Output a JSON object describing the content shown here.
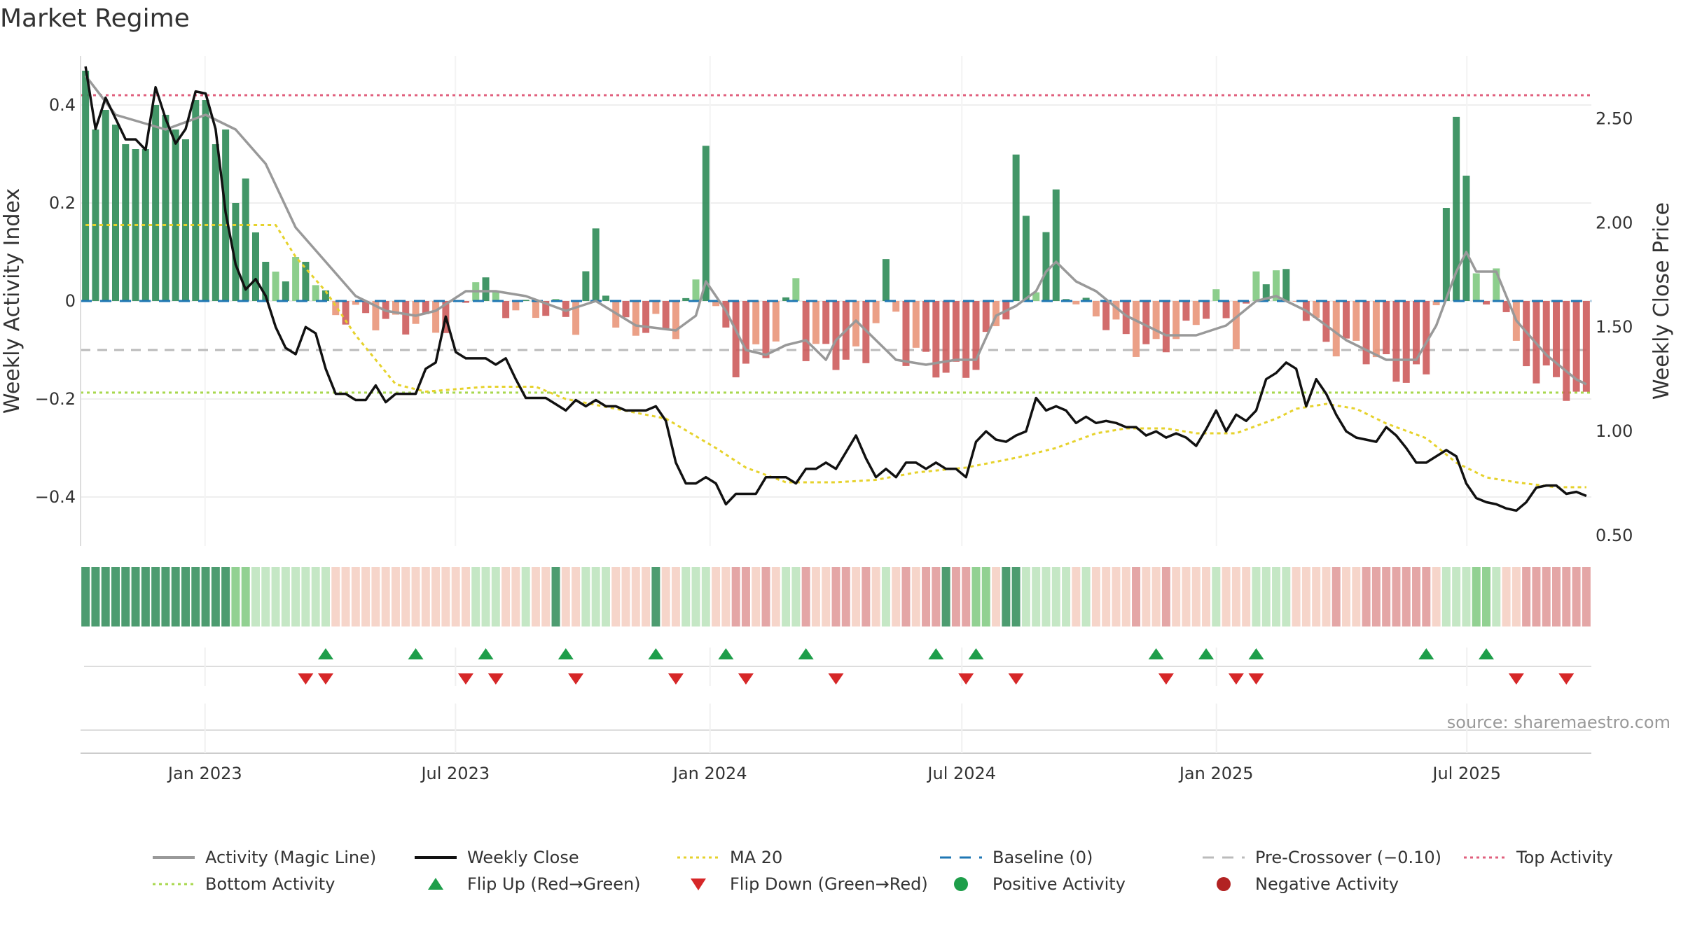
{
  "title": "Market Regime",
  "source": "source: sharemaestro.com",
  "colors": {
    "pos_strong": "#2e8b57",
    "pos_light": "#7fc97f",
    "neg_strong": "#cd5c5c",
    "neg_light": "#e9967a",
    "magic": "#999999",
    "close": "#111111",
    "ma": "#e6d22c",
    "baseline": "#1f77b4",
    "pre": "#bbbbbb",
    "top": "#e0607e",
    "bottom": "#a8d84e",
    "flip_up": "#1e9e4a",
    "flip_down": "#d62728",
    "pos_dot": "#1e9e4a",
    "neg_dot": "#b22222"
  },
  "chart_data": {
    "type": "bar",
    "x_axis": {
      "start": "2022-10-03",
      "end": "2025-09-29",
      "ticks": [
        "Jan 2023",
        "Jul 2023",
        "Jan 2024",
        "Jul 2024",
        "Jan 2025",
        "Jul 2025"
      ],
      "tick_dates": [
        "2023-01-01",
        "2023-07-01",
        "2024-01-01",
        "2024-07-01",
        "2025-01-01",
        "2025-07-01"
      ]
    },
    "y_left": {
      "label": "Weekly Activity Index",
      "ylim": [
        -0.5,
        0.5
      ],
      "ticks": [
        0.4,
        0.2,
        0,
        -0.2,
        -0.4
      ],
      "tick_labels": [
        "0.4",
        "0.2",
        "0",
        "−0.2",
        "−0.4"
      ]
    },
    "y_right": {
      "label": "Weekly Close Price",
      "ylim": [
        0.45,
        2.8
      ],
      "ticks": [
        2.5,
        2.0,
        1.5,
        1.0,
        0.5
      ],
      "tick_labels": [
        "2.50",
        "2.00",
        "1.50",
        "1.00",
        "0.50"
      ]
    },
    "activity": {
      "start_values": [
        0.47,
        0.35,
        0.39,
        0.36,
        0.32,
        0.31,
        0.31,
        0.4,
        0.38,
        0.35,
        0.33,
        0.41,
        0.41,
        0.32,
        0.35,
        0.2,
        0.25,
        0.14,
        0.08,
        0.06,
        0.04,
        0.09,
        0.08
      ],
      "anchors": [
        [
          22,
          0.08
        ],
        [
          24,
          0.01
        ],
        [
          26,
          -0.02
        ],
        [
          28,
          -0.04
        ],
        [
          30,
          -0.06
        ],
        [
          33,
          -0.03
        ],
        [
          36,
          -0.05
        ],
        [
          38,
          -0.02
        ],
        [
          39,
          0.05
        ],
        [
          41,
          0.01
        ],
        [
          45,
          -0.02
        ],
        [
          49,
          -0.05
        ],
        [
          51,
          0.15
        ],
        [
          53,
          -0.05
        ],
        [
          56,
          -0.07
        ],
        [
          59,
          -0.05
        ],
        [
          61,
          0.05
        ],
        [
          62,
          0.35
        ],
        [
          63,
          -0.02
        ],
        [
          65,
          -0.15
        ],
        [
          68,
          -0.1
        ],
        [
          71,
          0.05
        ],
        [
          72,
          -0.1
        ],
        [
          75,
          -0.13
        ],
        [
          78,
          -0.1
        ],
        [
          80,
          0.07
        ],
        [
          82,
          -0.12
        ],
        [
          86,
          -0.14
        ],
        [
          89,
          -0.12
        ],
        [
          92,
          -0.03
        ],
        [
          93,
          0.27
        ],
        [
          95,
          0.05
        ],
        [
          96,
          0.15
        ],
        [
          97,
          0.22
        ],
        [
          98,
          0.03
        ],
        [
          100,
          -0.03
        ],
        [
          103,
          -0.06
        ],
        [
          107,
          -0.09
        ],
        [
          110,
          -0.08
        ],
        [
          113,
          0.01
        ],
        [
          115,
          -0.06
        ],
        [
          117,
          0.04
        ],
        [
          119,
          0.05
        ],
        [
          121,
          0.01
        ],
        [
          124,
          -0.07
        ],
        [
          128,
          -0.12
        ],
        [
          131,
          -0.14
        ],
        [
          134,
          -0.14
        ],
        [
          136,
          0.16
        ],
        [
          137,
          0.35
        ],
        [
          138,
          0.27
        ],
        [
          139,
          0.05
        ],
        [
          140,
          -0.02
        ],
        [
          141,
          0.1
        ],
        [
          142,
          0.0
        ],
        [
          143,
          -0.1
        ],
        [
          145,
          -0.16
        ],
        [
          148,
          -0.18
        ],
        [
          150,
          -0.19
        ]
      ],
      "magic_line": [
        [
          0,
          0.46
        ],
        [
          3,
          0.38
        ],
        [
          8,
          0.35
        ],
        [
          12,
          0.38
        ],
        [
          15,
          0.35
        ],
        [
          18,
          0.28
        ],
        [
          21,
          0.15
        ],
        [
          24,
          0.08
        ],
        [
          27,
          0.01
        ],
        [
          30,
          -0.02
        ],
        [
          33,
          -0.03
        ],
        [
          35,
          -0.02
        ],
        [
          38,
          0.02
        ],
        [
          41,
          0.02
        ],
        [
          44,
          0.01
        ],
        [
          48,
          -0.02
        ],
        [
          51,
          0.0
        ],
        [
          55,
          -0.05
        ],
        [
          59,
          -0.06
        ],
        [
          61,
          -0.03
        ],
        [
          62,
          0.04
        ],
        [
          64,
          -0.02
        ],
        [
          66,
          -0.1
        ],
        [
          68,
          -0.11
        ],
        [
          70,
          -0.09
        ],
        [
          72,
          -0.08
        ],
        [
          74,
          -0.12
        ],
        [
          75,
          -0.08
        ],
        [
          77,
          -0.04
        ],
        [
          79,
          -0.08
        ],
        [
          81,
          -0.12
        ],
        [
          84,
          -0.13
        ],
        [
          87,
          -0.12
        ],
        [
          89,
          -0.12
        ],
        [
          91,
          -0.03
        ],
        [
          93,
          -0.01
        ],
        [
          95,
          0.02
        ],
        [
          96,
          0.06
        ],
        [
          97,
          0.08
        ],
        [
          99,
          0.04
        ],
        [
          101,
          0.02
        ],
        [
          104,
          -0.03
        ],
        [
          108,
          -0.07
        ],
        [
          111,
          -0.07
        ],
        [
          114,
          -0.05
        ],
        [
          117,
          0.0
        ],
        [
          119,
          0.01
        ],
        [
          122,
          -0.02
        ],
        [
          126,
          -0.08
        ],
        [
          130,
          -0.12
        ],
        [
          133,
          -0.12
        ],
        [
          135,
          -0.05
        ],
        [
          137,
          0.06
        ],
        [
          138,
          0.1
        ],
        [
          139,
          0.06
        ],
        [
          141,
          0.06
        ],
        [
          143,
          -0.04
        ],
        [
          146,
          -0.11
        ],
        [
          149,
          -0.16
        ],
        [
          150,
          -0.17
        ]
      ],
      "ma20": [
        [
          0,
          0.155
        ],
        [
          19,
          0.155
        ],
        [
          21,
          0.09
        ],
        [
          24,
          0.02
        ],
        [
          27,
          -0.07
        ],
        [
          31,
          -0.17
        ],
        [
          34,
          -0.185
        ],
        [
          40,
          -0.175
        ],
        [
          45,
          -0.175
        ],
        [
          48,
          -0.2
        ],
        [
          53,
          -0.22
        ],
        [
          58,
          -0.24
        ],
        [
          63,
          -0.3
        ],
        [
          66,
          -0.34
        ],
        [
          70,
          -0.37
        ],
        [
          75,
          -0.37
        ],
        [
          79,
          -0.365
        ],
        [
          83,
          -0.35
        ],
        [
          88,
          -0.34
        ],
        [
          93,
          -0.32
        ],
        [
          97,
          -0.3
        ],
        [
          101,
          -0.27
        ],
        [
          104,
          -0.26
        ],
        [
          108,
          -0.26
        ],
        [
          111,
          -0.27
        ],
        [
          115,
          -0.27
        ],
        [
          119,
          -0.24
        ],
        [
          121,
          -0.22
        ],
        [
          124,
          -0.21
        ],
        [
          127,
          -0.22
        ],
        [
          130,
          -0.25
        ],
        [
          134,
          -0.28
        ],
        [
          137,
          -0.33
        ],
        [
          140,
          -0.36
        ],
        [
          143,
          -0.37
        ],
        [
          147,
          -0.38
        ],
        [
          150,
          -0.38
        ]
      ],
      "top_level": 0.42,
      "bottom_level": -0.187,
      "pre_crossover": -0.1,
      "baseline": 0
    },
    "weekly_close": [
      [
        0,
        2.75
      ],
      [
        1,
        2.45
      ],
      [
        2,
        2.6
      ],
      [
        3,
        2.5
      ],
      [
        4,
        2.4
      ],
      [
        5,
        2.4
      ],
      [
        6,
        2.35
      ],
      [
        7,
        2.65
      ],
      [
        8,
        2.5
      ],
      [
        9,
        2.38
      ],
      [
        10,
        2.45
      ],
      [
        11,
        2.63
      ],
      [
        12,
        2.62
      ],
      [
        13,
        2.45
      ],
      [
        14,
        2.05
      ],
      [
        15,
        1.8
      ],
      [
        16,
        1.68
      ],
      [
        17,
        1.73
      ],
      [
        18,
        1.65
      ],
      [
        19,
        1.5
      ],
      [
        20,
        1.4
      ],
      [
        21,
        1.37
      ],
      [
        22,
        1.5
      ],
      [
        23,
        1.47
      ],
      [
        24,
        1.3
      ],
      [
        25,
        1.18
      ],
      [
        26,
        1.18
      ],
      [
        27,
        1.15
      ],
      [
        28,
        1.15
      ],
      [
        29,
        1.22
      ],
      [
        30,
        1.14
      ],
      [
        31,
        1.18
      ],
      [
        32,
        1.18
      ],
      [
        33,
        1.18
      ],
      [
        34,
        1.3
      ],
      [
        35,
        1.33
      ],
      [
        36,
        1.55
      ],
      [
        37,
        1.38
      ],
      [
        38,
        1.35
      ],
      [
        39,
        1.35
      ],
      [
        40,
        1.35
      ],
      [
        41,
        1.32
      ],
      [
        42,
        1.35
      ],
      [
        43,
        1.25
      ],
      [
        44,
        1.16
      ],
      [
        45,
        1.16
      ],
      [
        46,
        1.16
      ],
      [
        47,
        1.13
      ],
      [
        48,
        1.1
      ],
      [
        49,
        1.15
      ],
      [
        50,
        1.12
      ],
      [
        51,
        1.15
      ],
      [
        52,
        1.12
      ],
      [
        53,
        1.12
      ],
      [
        54,
        1.1
      ],
      [
        55,
        1.1
      ],
      [
        56,
        1.1
      ],
      [
        57,
        1.12
      ],
      [
        58,
        1.05
      ],
      [
        59,
        0.85
      ],
      [
        60,
        0.75
      ],
      [
        61,
        0.75
      ],
      [
        62,
        0.78
      ],
      [
        63,
        0.75
      ],
      [
        64,
        0.65
      ],
      [
        65,
        0.7
      ],
      [
        66,
        0.7
      ],
      [
        67,
        0.7
      ],
      [
        68,
        0.78
      ],
      [
        69,
        0.78
      ],
      [
        70,
        0.78
      ],
      [
        71,
        0.75
      ],
      [
        72,
        0.82
      ],
      [
        73,
        0.82
      ],
      [
        74,
        0.85
      ],
      [
        75,
        0.82
      ],
      [
        76,
        0.9
      ],
      [
        77,
        0.98
      ],
      [
        78,
        0.87
      ],
      [
        79,
        0.78
      ],
      [
        80,
        0.82
      ],
      [
        81,
        0.78
      ],
      [
        82,
        0.85
      ],
      [
        83,
        0.85
      ],
      [
        84,
        0.82
      ],
      [
        85,
        0.85
      ],
      [
        86,
        0.82
      ],
      [
        87,
        0.82
      ],
      [
        88,
        0.78
      ],
      [
        89,
        0.95
      ],
      [
        90,
        1.0
      ],
      [
        91,
        0.96
      ],
      [
        92,
        0.95
      ],
      [
        93,
        0.98
      ],
      [
        94,
        1.0
      ],
      [
        95,
        1.16
      ],
      [
        96,
        1.1
      ],
      [
        97,
        1.12
      ],
      [
        98,
        1.1
      ],
      [
        99,
        1.04
      ],
      [
        100,
        1.07
      ],
      [
        101,
        1.04
      ],
      [
        102,
        1.05
      ],
      [
        103,
        1.04
      ],
      [
        104,
        1.02
      ],
      [
        105,
        1.02
      ],
      [
        106,
        0.98
      ],
      [
        107,
        1.0
      ],
      [
        108,
        0.97
      ],
      [
        109,
        0.99
      ],
      [
        110,
        0.97
      ],
      [
        111,
        0.93
      ],
      [
        112,
        1.01
      ],
      [
        113,
        1.1
      ],
      [
        114,
        1.0
      ],
      [
        115,
        1.08
      ],
      [
        116,
        1.05
      ],
      [
        117,
        1.1
      ],
      [
        118,
        1.25
      ],
      [
        119,
        1.28
      ],
      [
        120,
        1.33
      ],
      [
        121,
        1.3
      ],
      [
        122,
        1.12
      ],
      [
        123,
        1.25
      ],
      [
        124,
        1.18
      ],
      [
        125,
        1.08
      ],
      [
        126,
        1.0
      ],
      [
        127,
        0.97
      ],
      [
        128,
        0.96
      ],
      [
        129,
        0.95
      ],
      [
        130,
        1.02
      ],
      [
        131,
        0.98
      ],
      [
        132,
        0.92
      ],
      [
        133,
        0.85
      ],
      [
        134,
        0.85
      ],
      [
        135,
        0.88
      ],
      [
        136,
        0.91
      ],
      [
        137,
        0.88
      ],
      [
        138,
        0.75
      ],
      [
        139,
        0.68
      ],
      [
        140,
        0.66
      ],
      [
        141,
        0.65
      ],
      [
        142,
        0.63
      ],
      [
        143,
        0.62
      ],
      [
        144,
        0.66
      ],
      [
        145,
        0.73
      ],
      [
        146,
        0.74
      ],
      [
        147,
        0.74
      ],
      [
        148,
        0.7
      ],
      [
        149,
        0.71
      ],
      [
        150,
        0.69
      ]
    ],
    "weekly_close_note_y_axis": "right",
    "regime_strip": {
      "strong_pos_ranges": [
        [
          0,
          14
        ],
        [
          47,
          47
        ],
        [
          57,
          57
        ],
        [
          86,
          86
        ],
        [
          92,
          93
        ]
      ],
      "medium_pos_ranges": [
        [
          14,
          16
        ],
        [
          89,
          90
        ],
        [
          139,
          140
        ]
      ]
    },
    "flip_up_weeks": [
      24,
      33,
      40,
      48,
      57,
      64,
      72,
      85,
      89,
      107,
      112,
      117,
      134,
      140
    ],
    "flip_down_weeks": [
      22,
      24,
      38,
      41,
      49,
      59,
      66,
      75,
      88,
      93,
      108,
      115,
      117,
      143,
      148
    ],
    "legend": [
      {
        "label": "Activity (Magic Line)",
        "symbol": "line",
        "color_key": "magic"
      },
      {
        "label": "Weekly Close",
        "symbol": "line",
        "color_key": "close"
      },
      {
        "label": "MA 20",
        "symbol": "dotted",
        "color_key": "ma"
      },
      {
        "label": "Baseline (0)",
        "symbol": "dashed",
        "color_key": "baseline"
      },
      {
        "label": "Pre-Crossover (−0.10)",
        "symbol": "dashed",
        "color_key": "pre"
      },
      {
        "label": "Top Activity",
        "symbol": "dotted",
        "color_key": "top"
      },
      {
        "label": "Bottom Activity",
        "symbol": "dotted",
        "color_key": "bottom"
      },
      {
        "label": "Flip Up (Red→Green)",
        "symbol": "tri-up",
        "color_key": "flip_up"
      },
      {
        "label": "Flip Down (Green→Red)",
        "symbol": "tri-down",
        "color_key": "flip_down"
      },
      {
        "label": "Positive Activity",
        "symbol": "dot",
        "color_key": "pos_dot"
      },
      {
        "label": "Negative Activity",
        "symbol": "dot",
        "color_key": "neg_dot"
      }
    ]
  }
}
